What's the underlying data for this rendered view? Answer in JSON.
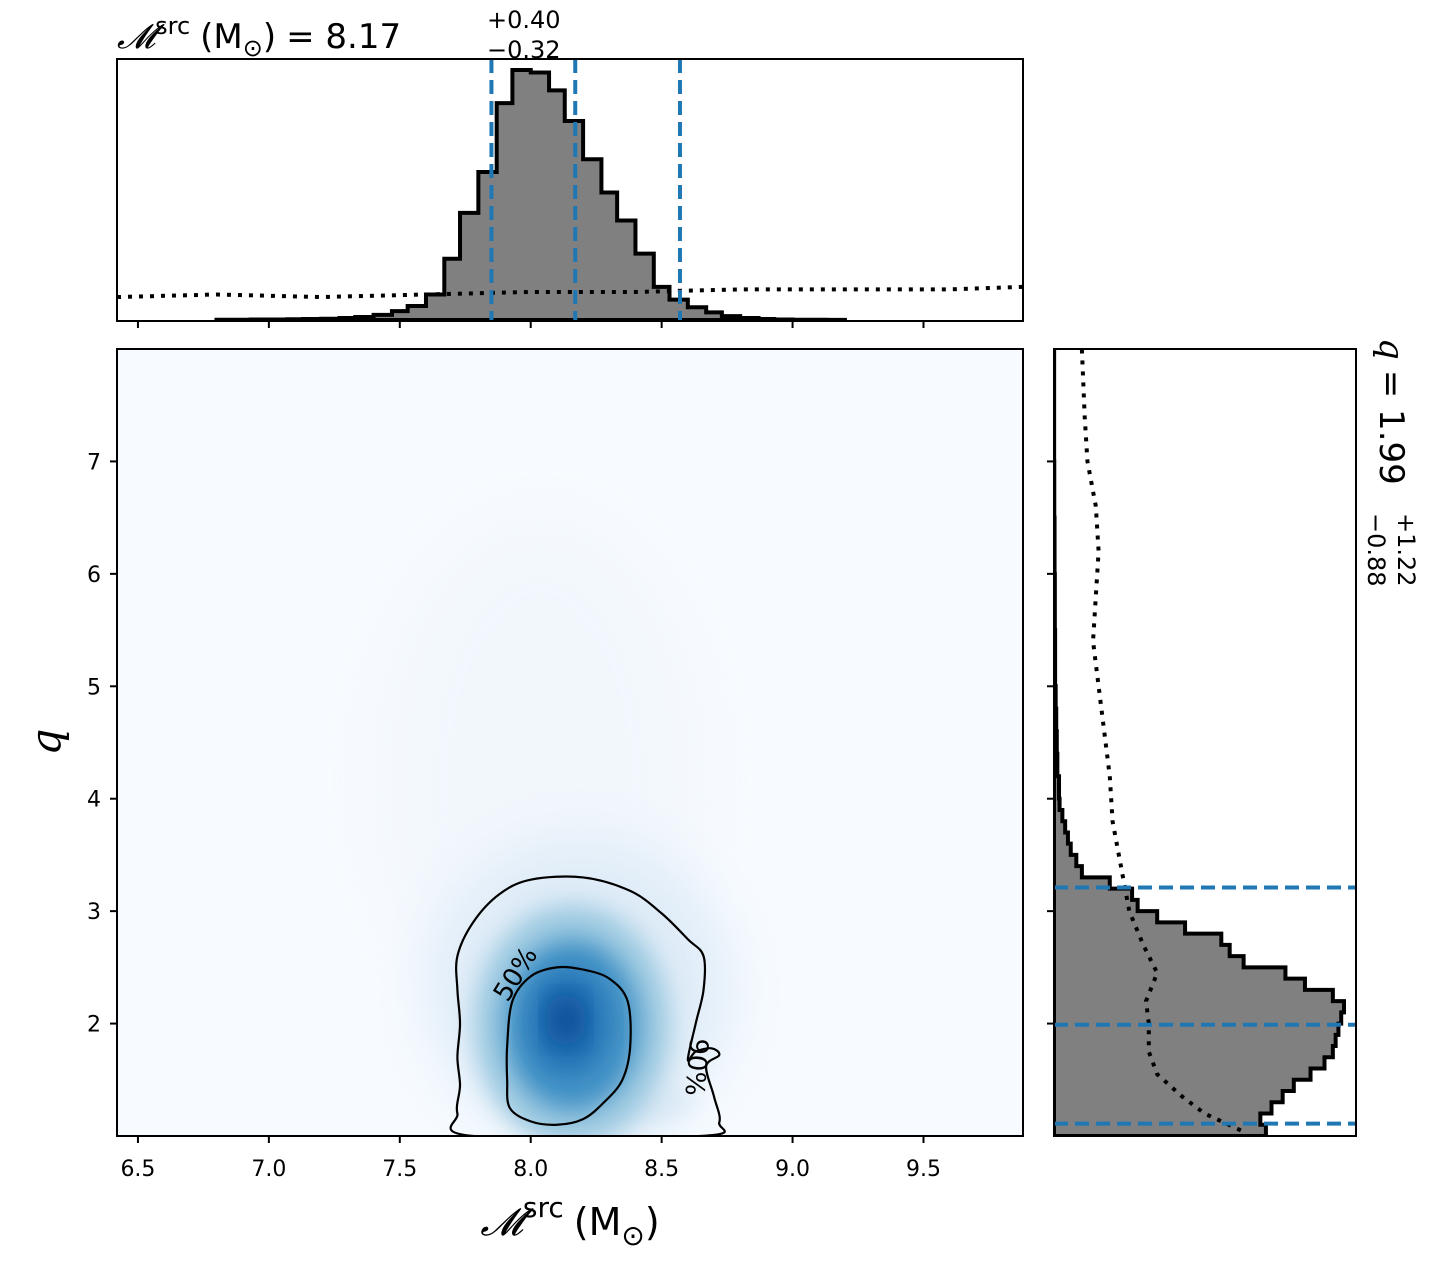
{
  "chart_data": [
    {
      "type": "histogram",
      "panel": "top marginal",
      "title": {
        "symbol": "𝓜",
        "sup": "src",
        "unit": "(M",
        "sun": "⊙",
        "close": ")",
        "eq": "= 8.17",
        "plus": "+0.40",
        "minus": "−0.32"
      },
      "xlim": [
        6.42,
        9.88
      ],
      "quantile_lines_x": [
        7.85,
        8.17,
        8.57
      ],
      "line_color": "#1f77b4",
      "fill_color": "#808080",
      "bin_edges": [
        6.8,
        6.87,
        6.93,
        7.0,
        7.07,
        7.13,
        7.2,
        7.27,
        7.33,
        7.4,
        7.47,
        7.53,
        7.6,
        7.67,
        7.73,
        7.8,
        7.87,
        7.93,
        8.0,
        8.07,
        8.13,
        8.2,
        8.27,
        8.33,
        8.4,
        8.47,
        8.53,
        8.6,
        8.67,
        8.73,
        8.8,
        8.87,
        8.93,
        9.0,
        9.07,
        9.13,
        9.2
      ],
      "values": [
        0.001,
        0.001,
        0.002,
        0.002,
        0.003,
        0.004,
        0.005,
        0.008,
        0.012,
        0.02,
        0.035,
        0.055,
        0.1,
        0.24,
        0.42,
        0.58,
        0.85,
        0.98,
        0.97,
        0.9,
        0.78,
        0.63,
        0.5,
        0.39,
        0.26,
        0.13,
        0.08,
        0.05,
        0.03,
        0.015,
        0.008,
        0.004,
        0.002,
        0.001,
        0.001,
        0.0005
      ],
      "prior_x": [
        6.42,
        6.8,
        7.2,
        7.6,
        8.0,
        8.4,
        8.8,
        9.2,
        9.6,
        9.88
      ],
      "prior_values": [
        0.09,
        0.1,
        0.09,
        0.1,
        0.11,
        0.11,
        0.12,
        0.12,
        0.12,
        0.13
      ],
      "xticks": [
        "6.5",
        "7.0",
        "7.5",
        "8.0",
        "8.5",
        "9.0",
        "9.5"
      ],
      "xtick_values": [
        6.5,
        7.0,
        7.5,
        8.0,
        8.5,
        9.0,
        9.5
      ]
    },
    {
      "type": "heatmap",
      "panel": "joint",
      "xlabel": {
        "symbol": "𝓜",
        "sup": "src",
        "unit": "(M",
        "sun": "⊙",
        "close": ")"
      },
      "ylabel": "q",
      "xlim": [
        6.42,
        9.88
      ],
      "ylim": [
        1.0,
        8.0
      ],
      "colormap": "Blues",
      "peak": [
        8.15,
        2.05
      ],
      "xticks": [
        "6.5",
        "7.0",
        "7.5",
        "8.0",
        "8.5",
        "9.0",
        "9.5"
      ],
      "xtick_values": [
        6.5,
        7.0,
        7.5,
        8.0,
        8.5,
        9.0,
        9.5
      ],
      "yticks": [
        "2",
        "3",
        "4",
        "5",
        "6",
        "7"
      ],
      "ytick_values": [
        2,
        3,
        4,
        5,
        6,
        7
      ],
      "contours": [
        {
          "label": "50%",
          "points": [
            [
              7.92,
              1.25
            ],
            [
              8.0,
              1.13
            ],
            [
              8.1,
              1.1
            ],
            [
              8.2,
              1.15
            ],
            [
              8.28,
              1.3
            ],
            [
              8.35,
              1.5
            ],
            [
              8.38,
              1.8
            ],
            [
              8.37,
              2.2
            ],
            [
              8.3,
              2.4
            ],
            [
              8.2,
              2.48
            ],
            [
              8.1,
              2.5
            ],
            [
              8.0,
              2.42
            ],
            [
              7.93,
              2.2
            ],
            [
              7.91,
              1.8
            ],
            [
              7.91,
              1.5
            ]
          ],
          "label_at": [
            7.97,
            2.4
          ],
          "label_rotation": -58
        },
        {
          "label": "90%",
          "points": [
            [
              8.65,
              1.0
            ],
            [
              8.72,
              1.12
            ],
            [
              8.7,
              1.35
            ],
            [
              8.67,
              1.62
            ],
            [
              8.72,
              1.72
            ],
            [
              8.69,
              1.78
            ],
            [
              8.63,
              1.75
            ],
            [
              8.6,
              1.68
            ],
            [
              8.63,
              2.0
            ],
            [
              8.66,
              2.3
            ],
            [
              8.66,
              2.6
            ],
            [
              8.6,
              2.75
            ],
            [
              8.5,
              2.98
            ],
            [
              8.38,
              3.18
            ],
            [
              8.2,
              3.3
            ],
            [
              8.0,
              3.28
            ],
            [
              7.88,
              3.15
            ],
            [
              7.78,
              2.9
            ],
            [
              7.72,
              2.6
            ],
            [
              7.72,
              2.3
            ],
            [
              7.73,
              2.0
            ],
            [
              7.72,
              1.7
            ],
            [
              7.73,
              1.45
            ],
            [
              7.72,
              1.2
            ],
            [
              7.78,
              1.0
            ]
          ],
          "label_at": [
            8.6,
            1.62
          ],
          "label_rotation": 95
        }
      ]
    },
    {
      "type": "histogram",
      "panel": "right marginal",
      "orientation": "horizontal",
      "title": {
        "symbol": "q",
        "eq": "= 1.99",
        "plus": "+1.22",
        "minus": "−0.88"
      },
      "ylim": [
        1.0,
        8.0
      ],
      "quantile_lines_y": [
        1.11,
        1.99,
        3.21
      ],
      "line_color": "#1f77b4",
      "fill_color": "#808080",
      "bin_edges": [
        1.0,
        1.1,
        1.2,
        1.3,
        1.4,
        1.5,
        1.6,
        1.7,
        1.8,
        1.9,
        2.0,
        2.1,
        2.2,
        2.3,
        2.4,
        2.5,
        2.6,
        2.7,
        2.8,
        2.9,
        3.0,
        3.1,
        3.2,
        3.3,
        3.4,
        3.5,
        3.6,
        3.7,
        3.8,
        3.9,
        4.0,
        4.2,
        4.4,
        4.6,
        4.8,
        5.0,
        5.5,
        6.0,
        6.5,
        7.0,
        8.0
      ],
      "values": [
        0.76,
        0.74,
        0.78,
        0.82,
        0.86,
        0.92,
        0.97,
        1.0,
        1.01,
        1.02,
        1.03,
        1.04,
        1.0,
        0.9,
        0.83,
        0.68,
        0.63,
        0.6,
        0.47,
        0.37,
        0.3,
        0.28,
        0.2,
        0.1,
        0.08,
        0.06,
        0.05,
        0.04,
        0.03,
        0.02,
        0.018,
        0.012,
        0.01,
        0.008,
        0.006,
        0.004,
        0.003,
        0.002,
        0.001,
        0.0005
      ],
      "prior_y": [
        1.05,
        1.2,
        1.35,
        1.55,
        1.75,
        2.0,
        2.2,
        2.45,
        2.7,
        3.0,
        3.4,
        3.8,
        4.2,
        4.6,
        5.0,
        5.4,
        5.8,
        6.2,
        6.6,
        7.0,
        7.4,
        8.0
      ],
      "prior_values": [
        0.67,
        0.54,
        0.46,
        0.37,
        0.34,
        0.34,
        0.33,
        0.37,
        0.32,
        0.27,
        0.24,
        0.21,
        0.2,
        0.18,
        0.16,
        0.14,
        0.15,
        0.16,
        0.15,
        0.12,
        0.11,
        0.1
      ]
    }
  ]
}
